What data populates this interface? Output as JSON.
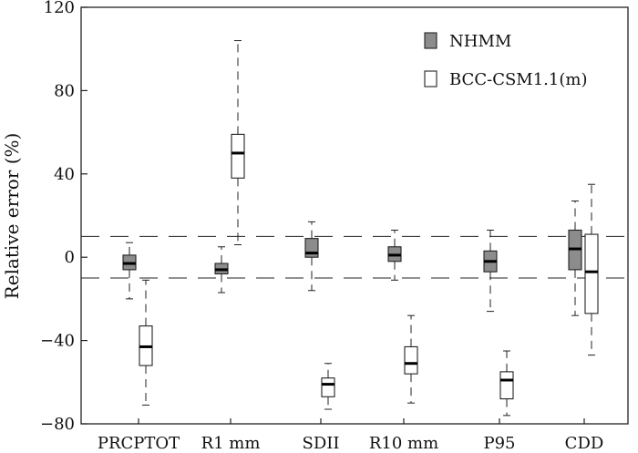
{
  "chart_data": {
    "type": "boxplot",
    "title": "",
    "xlabel": "",
    "ylabel": "Relative error (%)",
    "ylim": [
      -80,
      120
    ],
    "yticks": [
      -80,
      -40,
      0,
      40,
      80,
      120
    ],
    "ytick_labels": [
      "−80",
      "−40",
      "0",
      "40",
      "80",
      "120"
    ],
    "reference_lines": [
      10,
      -10
    ],
    "categories": [
      "PRCPTOT",
      "R1 mm",
      "SDII",
      "R10 mm",
      "P95",
      "CDD"
    ],
    "legend_position": "top-right",
    "series": [
      {
        "name": "NHMM",
        "fill": "#8c8c8c",
        "boxes": [
          {
            "whisker_low": -20,
            "q1": -6,
            "median": -3,
            "q3": 1,
            "whisker_high": 7
          },
          {
            "whisker_low": -17,
            "q1": -8,
            "median": -6,
            "q3": -3,
            "whisker_high": 5
          },
          {
            "whisker_low": -16,
            "q1": 0,
            "median": 2,
            "q3": 9,
            "whisker_high": 17
          },
          {
            "whisker_low": -11,
            "q1": -2,
            "median": 1,
            "q3": 5,
            "whisker_high": 13
          },
          {
            "whisker_low": -26,
            "q1": -7,
            "median": -2,
            "q3": 3,
            "whisker_high": 13
          },
          {
            "whisker_low": -28,
            "q1": -6,
            "median": 4,
            "q3": 13,
            "whisker_high": 27
          }
        ]
      },
      {
        "name": "BCC-CSM1.1(m)",
        "fill": "#ffffff",
        "boxes": [
          {
            "whisker_low": -71,
            "q1": -52,
            "median": -43,
            "q3": -33,
            "whisker_high": -11
          },
          {
            "whisker_low": 6,
            "q1": 38,
            "median": 50,
            "q3": 59,
            "whisker_high": 104
          },
          {
            "whisker_low": -73,
            "q1": -67,
            "median": -61,
            "q3": -58,
            "whisker_high": -51
          },
          {
            "whisker_low": -70,
            "q1": -56,
            "median": -51,
            "q3": -43,
            "whisker_high": -28
          },
          {
            "whisker_low": -76,
            "q1": -68,
            "median": -59,
            "q3": -55,
            "whisker_high": -45
          },
          {
            "whisker_low": -47,
            "q1": -27,
            "median": -7,
            "q3": 11,
            "whisker_high": 35
          }
        ]
      }
    ]
  }
}
